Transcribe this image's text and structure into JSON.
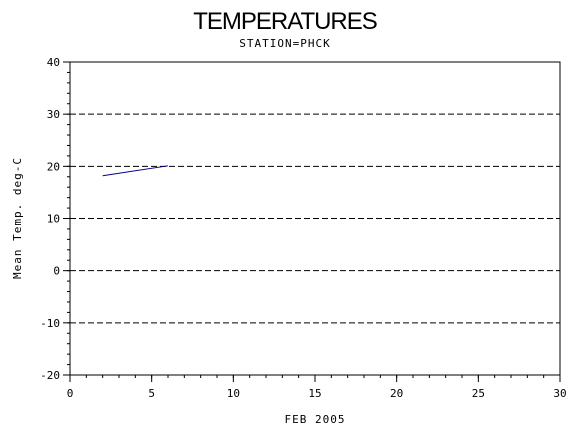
{
  "chart_data": {
    "type": "line",
    "title": "TEMPERATURES",
    "subtitle": "STATION=PHCK",
    "xlabel": "FEB 2005",
    "ylabel": "Mean Temp. deg-C",
    "xlim": [
      0,
      30
    ],
    "ylim": [
      -20,
      40
    ],
    "x_ticks": [
      0,
      5,
      10,
      15,
      20,
      25,
      30
    ],
    "y_ticks": [
      -20,
      -10,
      0,
      10,
      20,
      30,
      40
    ],
    "x_tick_labels": [
      "0",
      "5",
      "10",
      "15",
      "20",
      "25",
      "30"
    ],
    "y_tick_labels": [
      "-20",
      "-10",
      "0",
      "10",
      "20",
      "30",
      "40"
    ],
    "grid": "horizontal-dashed",
    "series": [
      {
        "color": "#000080",
        "x": [
          2,
          6
        ],
        "y": [
          18.2,
          20.1
        ]
      }
    ]
  }
}
